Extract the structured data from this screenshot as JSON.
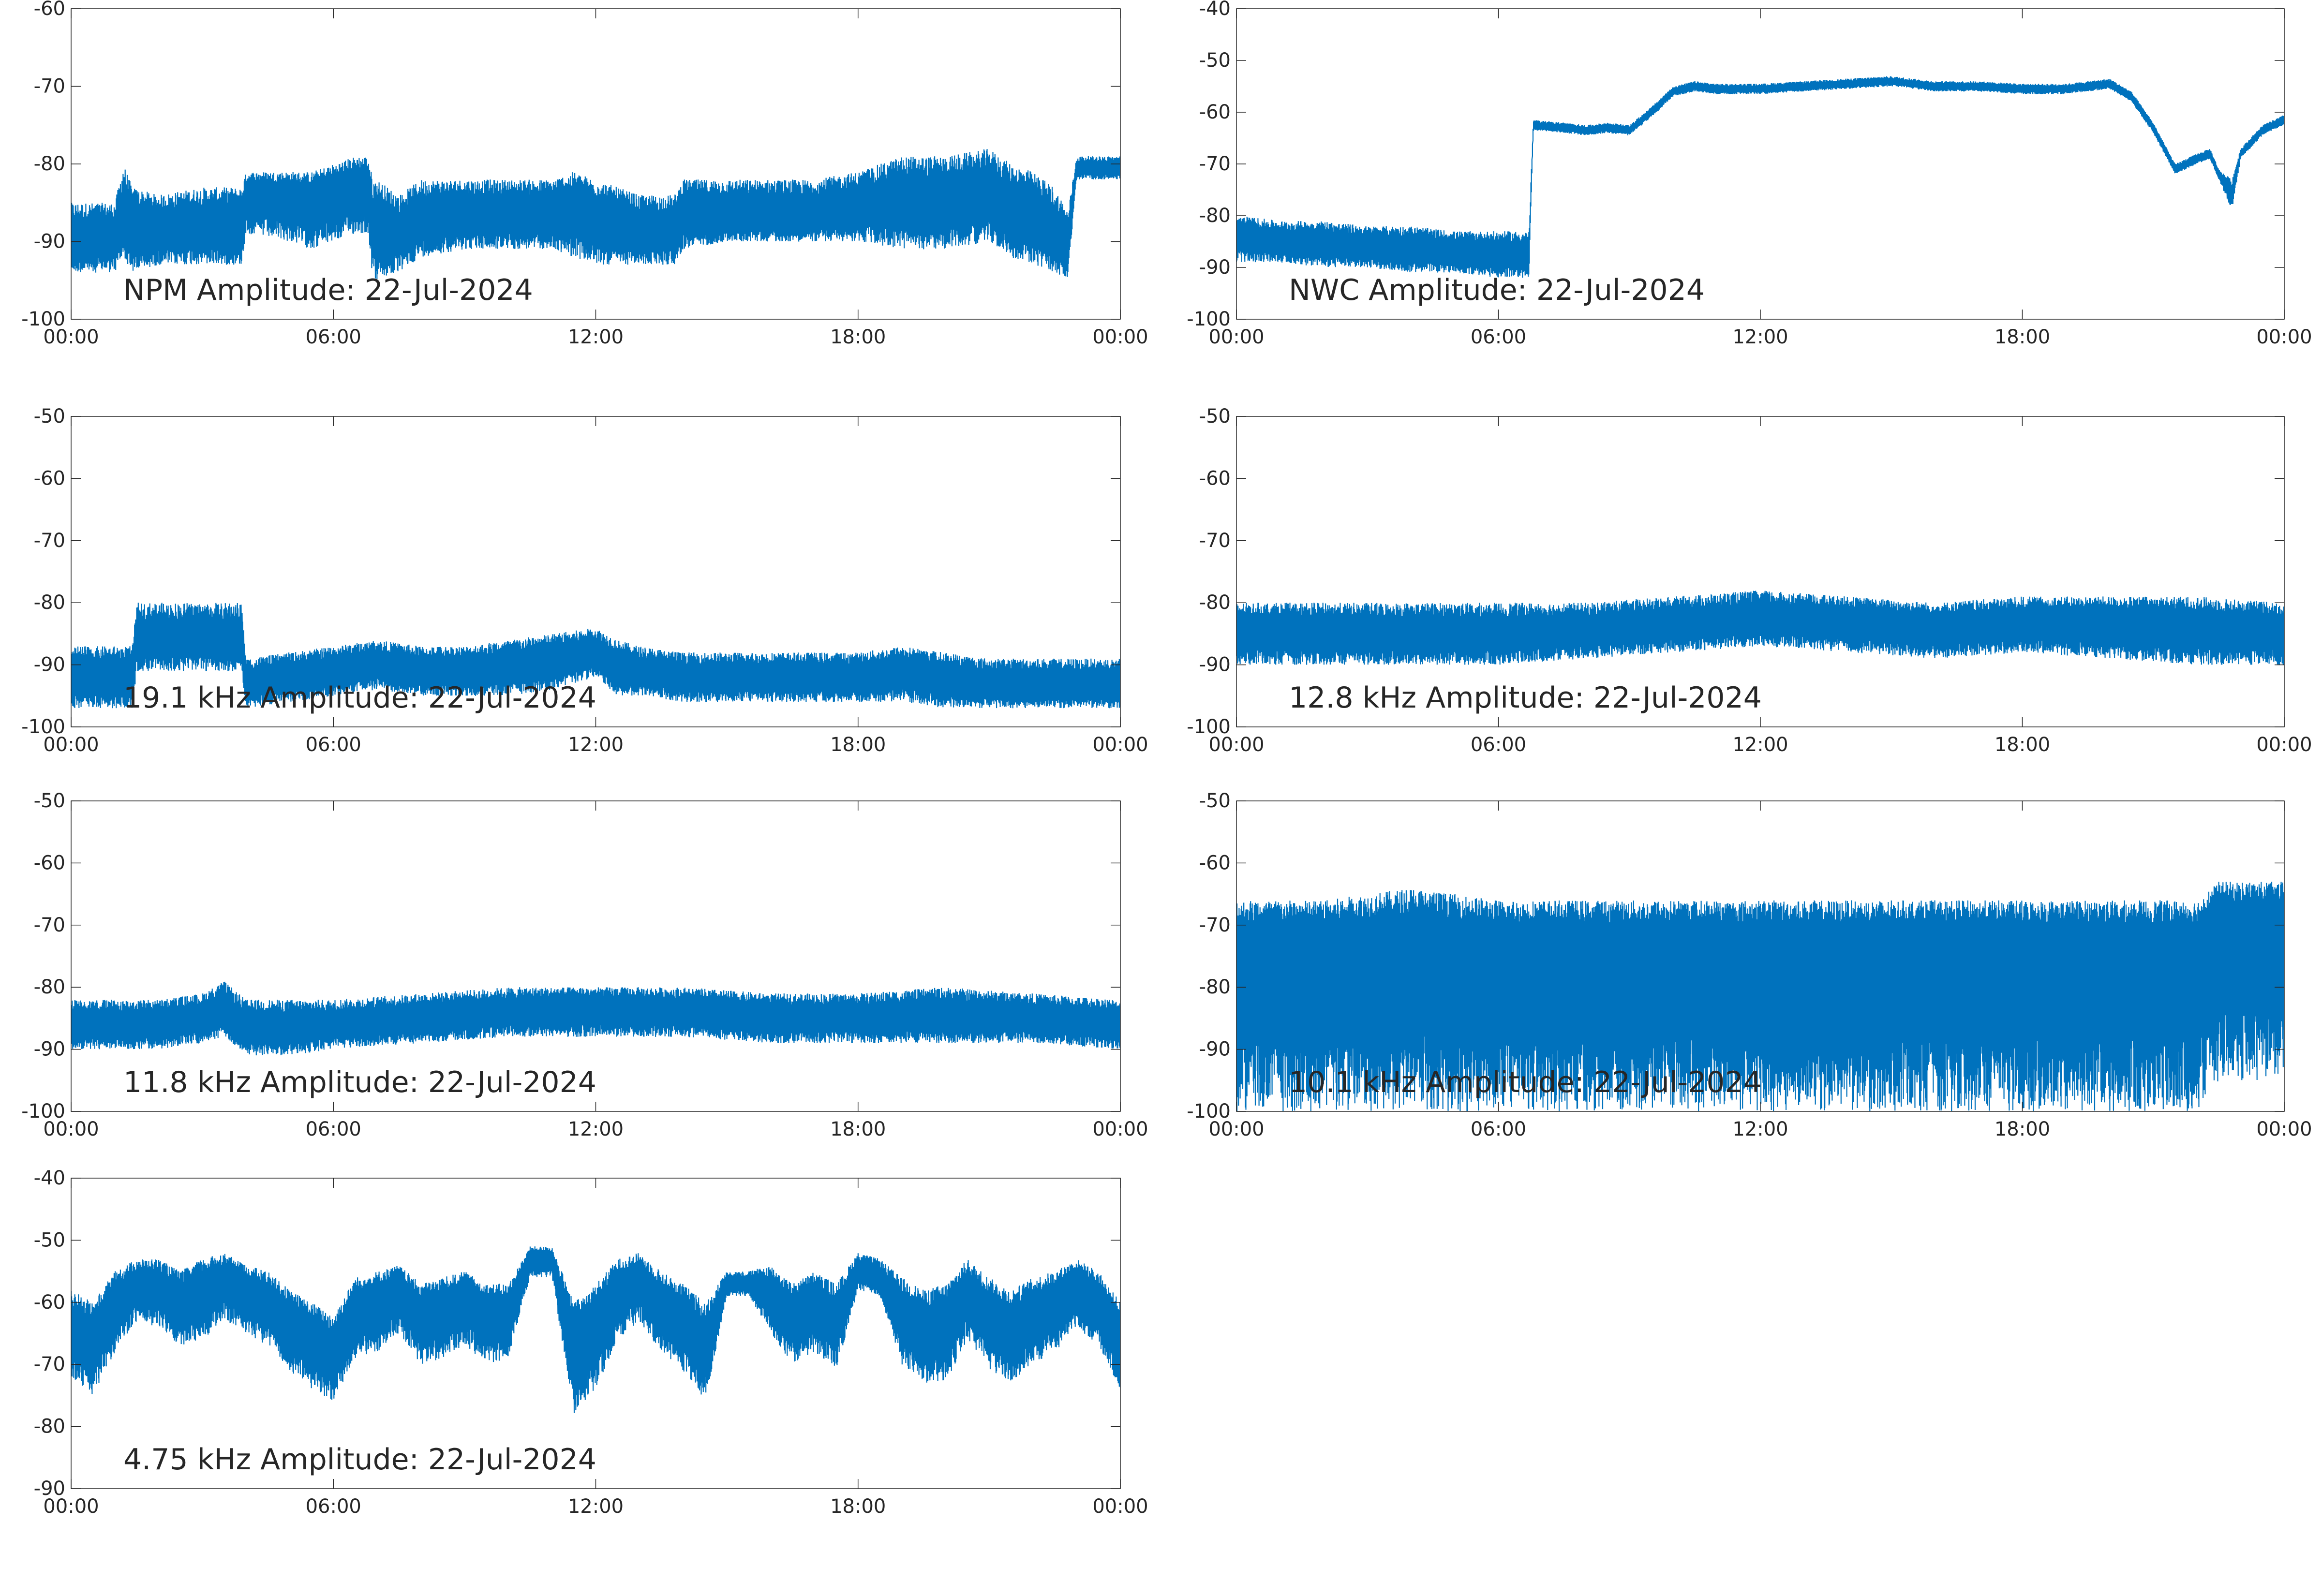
{
  "colors": {
    "trace": "#0072BD",
    "axes": "#262626",
    "background": "#ffffff"
  },
  "chart_data": [
    {
      "type": "line",
      "annotation": "NPM Amplitude: 22-Jul-2024",
      "x_ticks": [
        "00:00",
        "06:00",
        "12:00",
        "18:00",
        "00:00"
      ],
      "y_ticks": [
        -100,
        -90,
        -80,
        -70,
        -60
      ],
      "ylim": [
        -100,
        -60
      ],
      "x_unit": "hours",
      "xlim": [
        0,
        24
      ],
      "grid": false,
      "series": [
        {
          "x": [
            0,
            1,
            1.2,
            1.4,
            2,
            3,
            3.9,
            4,
            5,
            5.5,
            6,
            6.5,
            6.8,
            6.9,
            7,
            7.5,
            8,
            9,
            10,
            11,
            11.5,
            12,
            12.5,
            13,
            13.8,
            14,
            15,
            16,
            17,
            18,
            19,
            20,
            21,
            21.5,
            22,
            22.5,
            22.8,
            23,
            24
          ],
          "mean": [
            -89.5,
            -89.5,
            -86,
            -88.5,
            -88.5,
            -88,
            -88,
            -84,
            -84,
            -85,
            -84,
            -83,
            -83,
            -88,
            -88,
            -89,
            -87,
            -86.5,
            -86.5,
            -86.5,
            -86,
            -87,
            -88,
            -88.5,
            -88.5,
            -86.5,
            -86.5,
            -86.5,
            -86.5,
            -85.5,
            -85,
            -85,
            -84,
            -86,
            -87,
            -89,
            -91,
            -80.5,
            -80.5
          ],
          "low": [
            -94,
            -94,
            -92,
            -94,
            -93,
            -93,
            -93,
            -89,
            -90,
            -91,
            -90,
            -89,
            -89,
            -95,
            -95,
            -94,
            -92,
            -91,
            -91,
            -91,
            -92,
            -93,
            -93,
            -93,
            -93,
            -91,
            -90,
            -90,
            -90,
            -90,
            -91,
            -91,
            -90,
            -92,
            -93,
            -94,
            -95,
            -82,
            -82
          ],
          "high": [
            -85,
            -85,
            -80,
            -83,
            -84,
            -83,
            -83,
            -81,
            -81,
            -81,
            -80,
            -79,
            -79,
            -82,
            -82,
            -84,
            -82,
            -82,
            -82,
            -82,
            -81,
            -82,
            -83,
            -84,
            -84,
            -82,
            -82,
            -82,
            -82,
            -81,
            -79,
            -79,
            -78,
            -80,
            -81,
            -83,
            -86,
            -79,
            -79
          ]
        }
      ]
    },
    {
      "type": "line",
      "annotation": "NWC Amplitude: 22-Jul-2024",
      "x_ticks": [
        "00:00",
        "06:00",
        "12:00",
        "18:00",
        "00:00"
      ],
      "y_ticks": [
        -100,
        -90,
        -80,
        -70,
        -60,
        -50,
        -40
      ],
      "ylim": [
        -100,
        -40
      ],
      "x_unit": "hours",
      "xlim": [
        0,
        24
      ],
      "grid": false,
      "series": [
        {
          "x": [
            0,
            0.1,
            1,
            2,
            3,
            4,
            5,
            6,
            6.7,
            6.8,
            7.5,
            8,
            8.5,
            9,
            9.5,
            10,
            10.5,
            11,
            12,
            13,
            14,
            15,
            16,
            17,
            18,
            19,
            20,
            20.5,
            21,
            21.5,
            22,
            22.3,
            22.5,
            22.8,
            23,
            23.5,
            24
          ],
          "mean": [
            -84,
            -84,
            -85,
            -85.5,
            -86,
            -86.5,
            -87,
            -87.5,
            -87.5,
            -62.5,
            -63,
            -63.5,
            -63,
            -63.5,
            -60,
            -56,
            -55,
            -55.5,
            -55.5,
            -55,
            -54.5,
            -54,
            -55,
            -55,
            -55.5,
            -55.5,
            -54.5,
            -57,
            -63,
            -71,
            -69,
            -68,
            -72,
            -76,
            -68,
            -63.5,
            -61.5
          ],
          "low": [
            -89,
            -89,
            -89,
            -90,
            -90,
            -91,
            -91,
            -92,
            -92,
            -63.5,
            -64,
            -64.5,
            -64,
            -64.5,
            -61,
            -57,
            -56,
            -56.5,
            -56.5,
            -56,
            -55.5,
            -55,
            -56,
            -56,
            -56.5,
            -56.5,
            -55.5,
            -58,
            -64,
            -72,
            -70,
            -69,
            -73,
            -79,
            -69,
            -64.5,
            -62.5
          ],
          "high": [
            -80,
            -80,
            -81,
            -81,
            -82,
            -82,
            -83,
            -83,
            -83,
            -61.5,
            -62,
            -62.5,
            -62,
            -62.5,
            -59,
            -55,
            -54,
            -54.5,
            -54.5,
            -54,
            -53.5,
            -53,
            -54,
            -54,
            -54.5,
            -54.5,
            -53.5,
            -56,
            -62,
            -70,
            -68,
            -67,
            -71,
            -73,
            -67,
            -62.5,
            -60.5
          ]
        }
      ]
    },
    {
      "type": "line",
      "annotation": "19.1 kHz Amplitude: 22-Jul-2024",
      "x_ticks": [
        "00:00",
        "06:00",
        "12:00",
        "18:00",
        "00:00"
      ],
      "y_ticks": [
        -100,
        -90,
        -80,
        -70,
        -60,
        -50
      ],
      "ylim": [
        -100,
        -50
      ],
      "x_unit": "hours",
      "xlim": [
        0,
        24
      ],
      "grid": false,
      "series": [
        {
          "x": [
            0,
            1.4,
            1.5,
            2,
            3,
            3.9,
            4,
            5,
            6,
            7,
            8,
            9,
            10,
            11,
            12,
            12.5,
            13,
            14,
            15,
            16,
            17,
            18,
            19,
            20,
            21,
            22,
            23,
            24
          ],
          "mean": [
            -92,
            -92,
            -86,
            -86,
            -86,
            -86,
            -93,
            -92,
            -91,
            -90,
            -91,
            -91,
            -90.5,
            -89.5,
            -88,
            -90,
            -91,
            -92,
            -92,
            -92,
            -92,
            -92,
            -91,
            -92.5,
            -93,
            -93,
            -93,
            -93
          ],
          "low": [
            -97,
            -97,
            -91,
            -91,
            -91,
            -91,
            -97,
            -96,
            -95,
            -94,
            -95,
            -95,
            -95,
            -94,
            -92,
            -95,
            -95,
            -96,
            -96,
            -96,
            -96,
            -96,
            -96,
            -97,
            -97,
            -97,
            -97,
            -97
          ],
          "high": [
            -87,
            -87,
            -80,
            -80,
            -80,
            -80,
            -89,
            -88,
            -87,
            -86,
            -87,
            -87,
            -86,
            -85,
            -84,
            -86,
            -87,
            -88,
            -88,
            -88,
            -88,
            -88,
            -87,
            -88,
            -89,
            -89,
            -89,
            -89
          ]
        }
      ]
    },
    {
      "type": "line",
      "annotation": "12.8 kHz Amplitude: 22-Jul-2024",
      "x_ticks": [
        "00:00",
        "06:00",
        "12:00",
        "18:00",
        "00:00"
      ],
      "y_ticks": [
        -100,
        -90,
        -80,
        -70,
        -60,
        -50
      ],
      "ylim": [
        -100,
        -50
      ],
      "x_unit": "hours",
      "xlim": [
        0,
        24
      ],
      "grid": false,
      "series": [
        {
          "x": [
            0,
            2,
            4,
            6,
            8,
            10,
            12,
            14,
            16,
            18,
            20,
            22,
            24
          ],
          "mean": [
            -84.5,
            -85,
            -85,
            -85,
            -84.5,
            -83.5,
            -82.5,
            -83,
            -84,
            -83.5,
            -83.5,
            -84,
            -84.5
          ],
          "low": [
            -90,
            -90,
            -90,
            -90,
            -89,
            -88,
            -87,
            -88,
            -89,
            -88,
            -89,
            -90,
            -90
          ],
          "high": [
            -80,
            -80,
            -80,
            -80,
            -80,
            -79,
            -78,
            -79,
            -80,
            -79,
            -79,
            -79,
            -80
          ]
        }
      ]
    },
    {
      "type": "line",
      "annotation": "11.8 kHz Amplitude: 22-Jul-2024",
      "x_ticks": [
        "00:00",
        "06:00",
        "12:00",
        "18:00",
        "00:00"
      ],
      "y_ticks": [
        -100,
        -90,
        -80,
        -70,
        -60,
        -50
      ],
      "ylim": [
        -100,
        -50
      ],
      "x_unit": "hours",
      "xlim": [
        0,
        24
      ],
      "grid": false,
      "series": [
        {
          "x": [
            0,
            1,
            2,
            3,
            3.5,
            4,
            5,
            6,
            8,
            10,
            11,
            12,
            14,
            16,
            18,
            20,
            22,
            24
          ],
          "mean": [
            -86,
            -86,
            -86,
            -85,
            -84,
            -86.5,
            -86.5,
            -86,
            -85,
            -84,
            -83.5,
            -83.5,
            -84,
            -85,
            -85,
            -84.5,
            -85,
            -86
          ],
          "low": [
            -90,
            -90,
            -90,
            -89,
            -88,
            -91,
            -91,
            -90,
            -89,
            -88,
            -88,
            -88,
            -88,
            -89,
            -89,
            -89,
            -89,
            -90
          ],
          "high": [
            -82,
            -82,
            -82,
            -81,
            -79,
            -82,
            -82,
            -82,
            -81,
            -80,
            -80,
            -80,
            -80,
            -81,
            -81,
            -80,
            -81,
            -82
          ]
        }
      ]
    },
    {
      "type": "line",
      "annotation": "10.1 kHz Amplitude: 22-Jul-2024",
      "x_ticks": [
        "00:00",
        "06:00",
        "12:00",
        "18:00",
        "00:00"
      ],
      "y_ticks": [
        -100,
        -90,
        -80,
        -70,
        -60,
        -50
      ],
      "ylim": [
        -100,
        -50
      ],
      "x_unit": "hours",
      "xlim": [
        0,
        24
      ],
      "grid": false,
      "series": [
        {
          "x": [
            0,
            2,
            4,
            6,
            8,
            10,
            12,
            14,
            16,
            18,
            20,
            22,
            22.5,
            24
          ],
          "mean": [
            -74,
            -74,
            -73,
            -74,
            -74,
            -74,
            -74,
            -74,
            -74,
            -74,
            -74,
            -74,
            -70,
            -70
          ],
          "low": [
            -100,
            -100,
            -100,
            -100,
            -100,
            -100,
            -100,
            -100,
            -100,
            -100,
            -100,
            -100,
            -95,
            -95
          ],
          "high": [
            -66,
            -66,
            -64,
            -66,
            -66,
            -66,
            -66,
            -66,
            -66,
            -66,
            -66,
            -66,
            -63,
            -63
          ]
        }
      ]
    },
    {
      "type": "line",
      "annotation": "4.75 kHz Amplitude: 22-Jul-2024",
      "x_ticks": [
        "00:00",
        "06:00",
        "12:00",
        "18:00",
        "00:00"
      ],
      "y_ticks": [
        -90,
        -80,
        -70,
        -60,
        -50,
        -40
      ],
      "ylim": [
        -90,
        -40
      ],
      "x_unit": "hours",
      "xlim": [
        0,
        24
      ],
      "grid": false,
      "series": [
        {
          "x": [
            0,
            0.5,
            1,
            1.5,
            2,
            2.5,
            3,
            3.5,
            4,
            4.5,
            5,
            5.5,
            6,
            6.5,
            7,
            7.5,
            8,
            8.5,
            9,
            9.5,
            10,
            10.5,
            11,
            11.5,
            12,
            12.5,
            13,
            13.5,
            14,
            14.5,
            15,
            15.5,
            16,
            16.5,
            17,
            17.5,
            18,
            18.5,
            19,
            19.5,
            20,
            20.5,
            21,
            21.5,
            22,
            22.5,
            23,
            23.5,
            24
          ],
          "mean": [
            -64,
            -66,
            -60,
            -57,
            -57,
            -60,
            -58,
            -56,
            -58,
            -60,
            -63,
            -66,
            -68,
            -61,
            -60,
            -58,
            -62,
            -61,
            -59,
            -62,
            -62,
            -53,
            -53,
            -68,
            -64,
            -58,
            -56,
            -60,
            -63,
            -67,
            -57,
            -57,
            -58,
            -62,
            -60,
            -63,
            -55,
            -56,
            -62,
            -64,
            -64,
            -58,
            -62,
            -64,
            -62,
            -60,
            -57,
            -60,
            -66
          ],
          "low": [
            -72,
            -75,
            -68,
            -63,
            -64,
            -67,
            -66,
            -63,
            -65,
            -67,
            -71,
            -74,
            -76,
            -69,
            -68,
            -65,
            -70,
            -69,
            -67,
            -70,
            -69,
            -56,
            -56,
            -78,
            -74,
            -66,
            -63,
            -68,
            -71,
            -76,
            -59,
            -59,
            -65,
            -70,
            -68,
            -71,
            -58,
            -59,
            -70,
            -73,
            -73,
            -66,
            -71,
            -73,
            -70,
            -68,
            -64,
            -67,
            -74
          ],
          "high": [
            -58,
            -60,
            -55,
            -53,
            -53,
            -55,
            -53,
            -52,
            -54,
            -55,
            -58,
            -60,
            -62,
            -56,
            -55,
            -54,
            -57,
            -56,
            -55,
            -57,
            -57,
            -51,
            -51,
            -60,
            -57,
            -53,
            -52,
            -55,
            -57,
            -60,
            -55,
            -55,
            -54,
            -57,
            -55,
            -57,
            -52,
            -53,
            -56,
            -58,
            -57,
            -53,
            -56,
            -58,
            -56,
            -55,
            -53,
            -55,
            -60
          ]
        }
      ]
    }
  ]
}
